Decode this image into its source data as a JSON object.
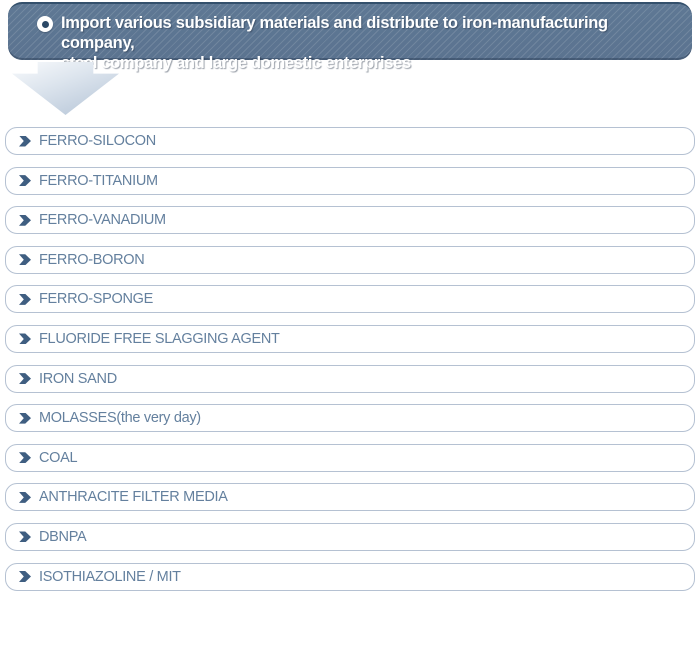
{
  "header": {
    "line1": "Import various subsidiary materials and distribute to iron-manufacturing company,",
    "line2": "steel company and large domestic enterprises",
    "bullet_icon": "dot-circle-icon"
  },
  "arrow": {
    "icon": "down-arrow-icon"
  },
  "colors": {
    "banner_bg": "#5b7390",
    "banner_top_border": "#33506c",
    "banner_text": "#ffffff",
    "box_border": "#b5c1d2",
    "item_text": "#64809e",
    "chevron_icon": "#3f5e81",
    "arrow_gradient_start": "#f8fafc",
    "arrow_gradient_end": "#b2c2d5"
  },
  "list": {
    "items": [
      "FERRO-SILOCON",
      "FERRO-TITANIUM",
      "FERRO-VANADIUM",
      "FERRO-BORON",
      "FERRO-SPONGE",
      "FLUORIDE FREE SLAGGING AGENT",
      "IRON SAND",
      "MOLASSES(the very day)",
      "COAL",
      "ANTHRACITE FILTER MEDIA",
      "DBNPA",
      "ISOTHIAZOLINE / MIT"
    ]
  }
}
